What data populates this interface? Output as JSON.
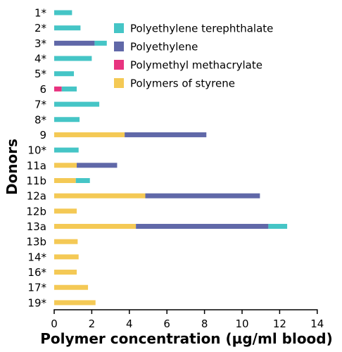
{
  "chart_data": {
    "type": "bar",
    "orientation": "horizontal",
    "stacked": true,
    "title": "",
    "xlabel": "Polymer concentration (µg/ml blood)",
    "ylabel": "Donors",
    "xlim": [
      0,
      14
    ],
    "xticks": [
      0,
      2,
      4,
      6,
      8,
      10,
      12,
      14
    ],
    "grid": false,
    "legend_position": "top-right",
    "categories": [
      "1*",
      "2*",
      "3*",
      "4*",
      "5*",
      "6",
      "7*",
      "8*",
      "9",
      "10*",
      "11a",
      "11b",
      "12a",
      "12b",
      "13a",
      "13b",
      "14*",
      "16*",
      "17*",
      "19*"
    ],
    "series": [
      {
        "name": "Polymers of styrene",
        "color": "#f4c955",
        "values": [
          0,
          0,
          0,
          0,
          0,
          0,
          0,
          0,
          3.75,
          0,
          1.2,
          1.15,
          4.85,
          1.2,
          4.35,
          1.25,
          1.3,
          1.2,
          1.8,
          2.2
        ]
      },
      {
        "name": "Polyethylene",
        "color": "#6068a8",
        "values": [
          0,
          0,
          2.15,
          0,
          0,
          0,
          0,
          0,
          4.35,
          0,
          2.15,
          0,
          6.1,
          0,
          7.05,
          0,
          0,
          0,
          0,
          0
        ]
      },
      {
        "name": "Polymethyl methacrylate",
        "color": "#e8337f",
        "values": [
          0,
          0,
          0,
          0,
          0,
          0.4,
          0,
          0,
          0,
          0,
          0,
          0,
          0,
          0,
          0,
          0,
          0,
          0,
          0,
          0
        ]
      },
      {
        "name": "Polyethylene terephthalate",
        "color": "#45c5c6",
        "values": [
          0.95,
          1.4,
          0.65,
          2.0,
          1.05,
          0.8,
          2.4,
          1.35,
          0,
          1.3,
          0,
          0.75,
          0,
          0,
          1.0,
          0,
          0,
          0,
          0,
          0
        ]
      }
    ],
    "legend": [
      {
        "name": "Polyethylene terephthalate",
        "color": "#45c5c6"
      },
      {
        "name": "Polyethylene",
        "color": "#6068a8"
      },
      {
        "name": "Polymethyl methacrylate",
        "color": "#e8337f"
      },
      {
        "name": "Polymers of styrene",
        "color": "#f4c955"
      }
    ]
  }
}
